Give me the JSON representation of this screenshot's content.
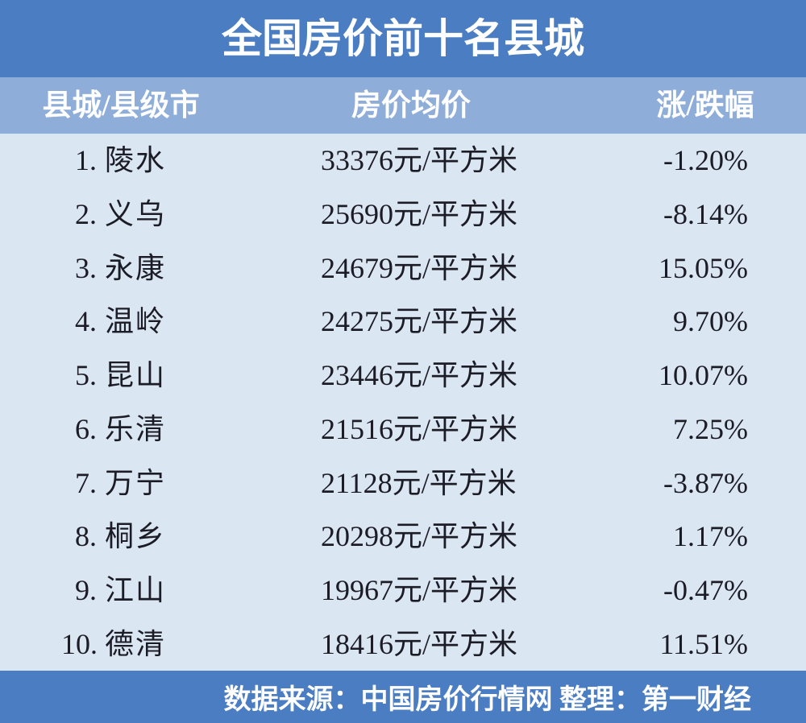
{
  "title": "全国房价前十名县城",
  "table": {
    "columns": [
      "县城/县级市",
      "房价均价",
      "涨/跌幅"
    ],
    "rows": [
      {
        "rank": "1.",
        "name": "陵水",
        "price": "33376元/平方米",
        "change": "-1.20%"
      },
      {
        "rank": "2.",
        "name": "义乌",
        "price": "25690元/平方米",
        "change": "-8.14%"
      },
      {
        "rank": "3.",
        "name": "永康",
        "price": "24679元/平方米",
        "change": "15.05%"
      },
      {
        "rank": "4.",
        "name": "温岭",
        "price": "24275元/平方米",
        "change": "9.70%"
      },
      {
        "rank": "5.",
        "name": "昆山",
        "price": "23446元/平方米",
        "change": "10.07%"
      },
      {
        "rank": "6.",
        "name": "乐清",
        "price": "21516元/平方米",
        "change": "7.25%"
      },
      {
        "rank": "7.",
        "name": "万宁",
        "price": "21128元/平方米",
        "change": "-3.87%"
      },
      {
        "rank": "8.",
        "name": "桐乡",
        "price": "20298元/平方米",
        "change": "1.17%"
      },
      {
        "rank": "9.",
        "name": "江山",
        "price": "19967元/平方米",
        "change": "-0.47%"
      },
      {
        "rank": "10.",
        "name": "德清",
        "price": "18416元/平方米",
        "change": "11.51%"
      }
    ]
  },
  "footer": {
    "text": "数据来源：中国房价行情网 整理：第一财经"
  },
  "colors": {
    "banner_blue": "#4a7dc1",
    "header_blue": "#8fadd9",
    "body_light_blue": "#dbe6f3",
    "text_dark": "#1c1c26",
    "text_white": "#ffffff"
  },
  "chart_data": {
    "type": "table",
    "title": "全国房价前十名县城",
    "columns": [
      "县城/县级市",
      "房价均价",
      "涨/跌幅"
    ],
    "counties": [
      "陵水",
      "义乌",
      "永康",
      "温岭",
      "昆山",
      "乐清",
      "万宁",
      "桐乡",
      "江山",
      "德清"
    ],
    "prices_yuan_per_sqm": [
      33376,
      25690,
      24679,
      24275,
      23446,
      21516,
      21128,
      20298,
      19967,
      18416
    ],
    "change_pct": [
      -1.2,
      -8.14,
      15.05,
      9.7,
      10.07,
      7.25,
      -3.87,
      1.17,
      -0.47,
      11.51
    ],
    "source_note": "数据来源：中国房价行情网 整理：第一财经"
  }
}
